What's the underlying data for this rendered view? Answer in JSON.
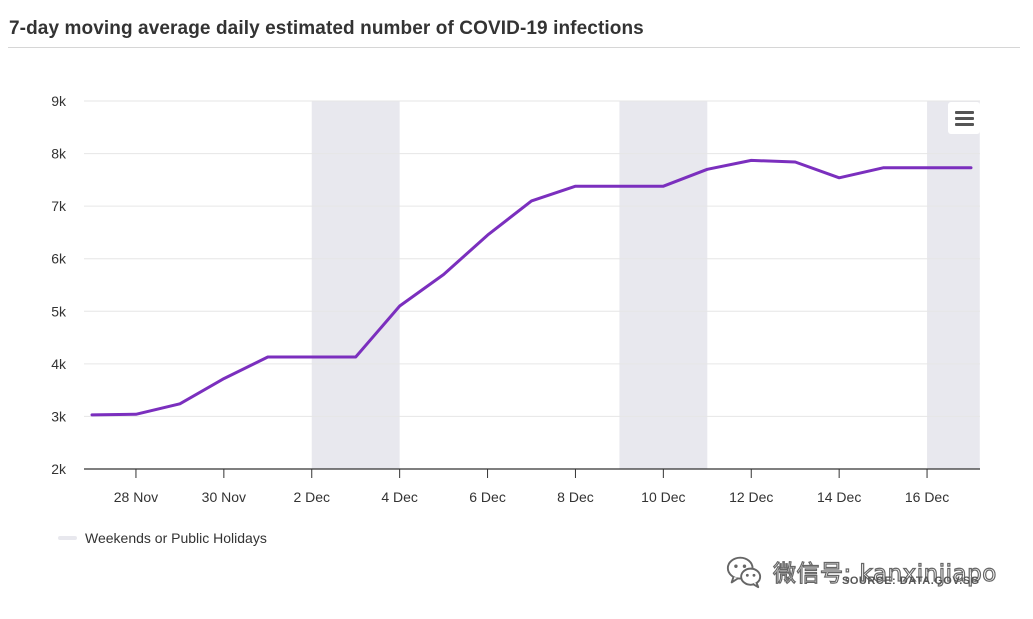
{
  "chart_data": {
    "type": "line",
    "title": "7-day moving average daily estimated number of COVID-19 infections",
    "xlabel": "",
    "ylabel": "",
    "x": [
      "27 Nov",
      "28 Nov",
      "29 Nov",
      "30 Nov",
      "1 Dec",
      "2 Dec",
      "3 Dec",
      "4 Dec",
      "5 Dec",
      "6 Dec",
      "7 Dec",
      "8 Dec",
      "9 Dec",
      "10 Dec",
      "11 Dec",
      "12 Dec",
      "13 Dec",
      "14 Dec",
      "15 Dec",
      "16 Dec",
      "17 Dec"
    ],
    "series": [
      {
        "name": "",
        "color": "#7b2fbe",
        "values": [
          3030,
          3040,
          3240,
          3720,
          4130,
          4130,
          4130,
          5100,
          5700,
          6450,
          7100,
          7380,
          7380,
          7380,
          7700,
          7870,
          7840,
          7540,
          7730,
          7730,
          7730
        ]
      }
    ],
    "ylim": [
      2000,
      9000
    ],
    "yticks": [
      2000,
      3000,
      4000,
      5000,
      6000,
      7000,
      8000,
      9000
    ],
    "ytick_labels": [
      "2k",
      "3k",
      "4k",
      "5k",
      "6k",
      "7k",
      "8k",
      "9k"
    ],
    "xticks": [
      "28 Nov",
      "30 Nov",
      "2 Dec",
      "4 Dec",
      "6 Dec",
      "8 Dec",
      "10 Dec",
      "12 Dec",
      "14 Dec",
      "16 Dec"
    ],
    "xtick_days": [
      1,
      3,
      5,
      7,
      9,
      11,
      13,
      15,
      17,
      19
    ],
    "bands": [
      {
        "from_day": 5,
        "to_day": 7
      },
      {
        "from_day": 12,
        "to_day": 14
      },
      {
        "from_day": 19,
        "to_day": 20.2
      }
    ],
    "band_color": "#e8e8ee",
    "grid": true,
    "legend": {
      "placement": "bottom-left",
      "items": [
        {
          "label": "Weekends or Public Holidays",
          "color": "#e8e8ee"
        }
      ]
    }
  },
  "watermark": {
    "text": "微信号: kanxinjiapo",
    "icon": "wechat-icon"
  },
  "source": "SOURCE: DATA.GOV.SG",
  "menu": {
    "icon": "hamburger-menu-icon"
  }
}
